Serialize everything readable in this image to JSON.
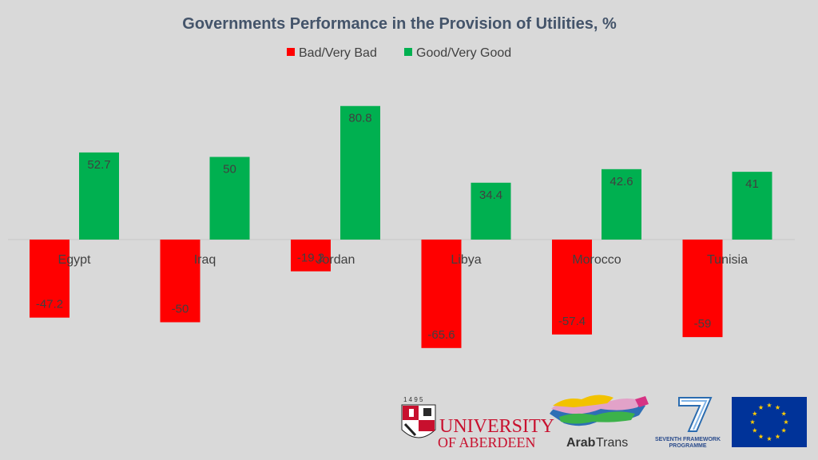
{
  "chart_data": {
    "type": "bar",
    "title": "Governments Performance in the Provision of Utilities, %",
    "categories": [
      "Egypt",
      "Iraq",
      "Jordan",
      "Libya",
      "Morocco",
      "Tunisia"
    ],
    "series": [
      {
        "name": "Bad/Very Bad",
        "color": "#ff0000",
        "values": [
          -47.2,
          -50,
          -19.2,
          -65.6,
          -57.4,
          -59
        ]
      },
      {
        "name": "Good/Very Good",
        "color": "#00b050",
        "values": [
          52.7,
          50,
          80.8,
          34.4,
          42.6,
          41
        ]
      }
    ],
    "value_labels": {
      "Bad/Very Bad": [
        "-47.2",
        "-50",
        "-19.2",
        "-65.6",
        "-57.4",
        "-59"
      ],
      "Good/Very Good": [
        "52.7",
        "50",
        "80.8",
        "34.4",
        "42.6",
        "41"
      ]
    },
    "ylim": [
      -80,
      80.8
    ],
    "grid": false,
    "legend_position": "top-center"
  },
  "logos": {
    "aberdeen_year": "1 4 9 5",
    "aberdeen_line1": "UNIVERSITY",
    "aberdeen_line2": "OF ABERDEEN",
    "arabtrans_a": "Arab",
    "arabtrans_b": "Trans",
    "fp7_line1": "SEVENTH FRAMEWORK",
    "fp7_line2": "PROGRAMME"
  }
}
